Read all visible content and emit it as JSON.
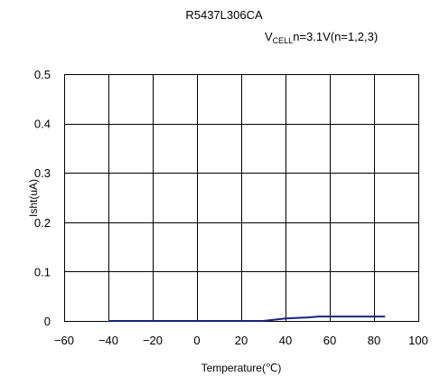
{
  "chart_data": {
    "type": "line",
    "title": "R5437L306CA",
    "subtitle": {
      "prefix": "V",
      "subscript": "CELL",
      "suffix": "n=3.1V(n=1,2,3)"
    },
    "xlabel": "Temperature(℃)",
    "ylabel": "Isht(uA)",
    "xlim": [
      -60,
      100
    ],
    "ylim": [
      0,
      0.5
    ],
    "xticks": [
      -60,
      -40,
      -20,
      0,
      20,
      40,
      60,
      80,
      100
    ],
    "xtick_labels": [
      "−60",
      "−40",
      "−20",
      "0",
      "20",
      "40",
      "60",
      "80",
      "100"
    ],
    "yticks": [
      0,
      0.1,
      0.2,
      0.3,
      0.4,
      0.5
    ],
    "ytick_labels": [
      "0",
      "0.1",
      "0.2",
      "0.3",
      "0.4",
      "0.5"
    ],
    "grid": true,
    "series": [
      {
        "color": "#1a237e",
        "x": [
          -40,
          -20,
          0,
          20,
          30,
          40,
          50,
          55,
          60,
          70,
          80,
          85
        ],
        "y": [
          0,
          0,
          0,
          0,
          0,
          0.005,
          0.007,
          0.009,
          0.009,
          0.009,
          0.009,
          0.009
        ]
      }
    ]
  }
}
